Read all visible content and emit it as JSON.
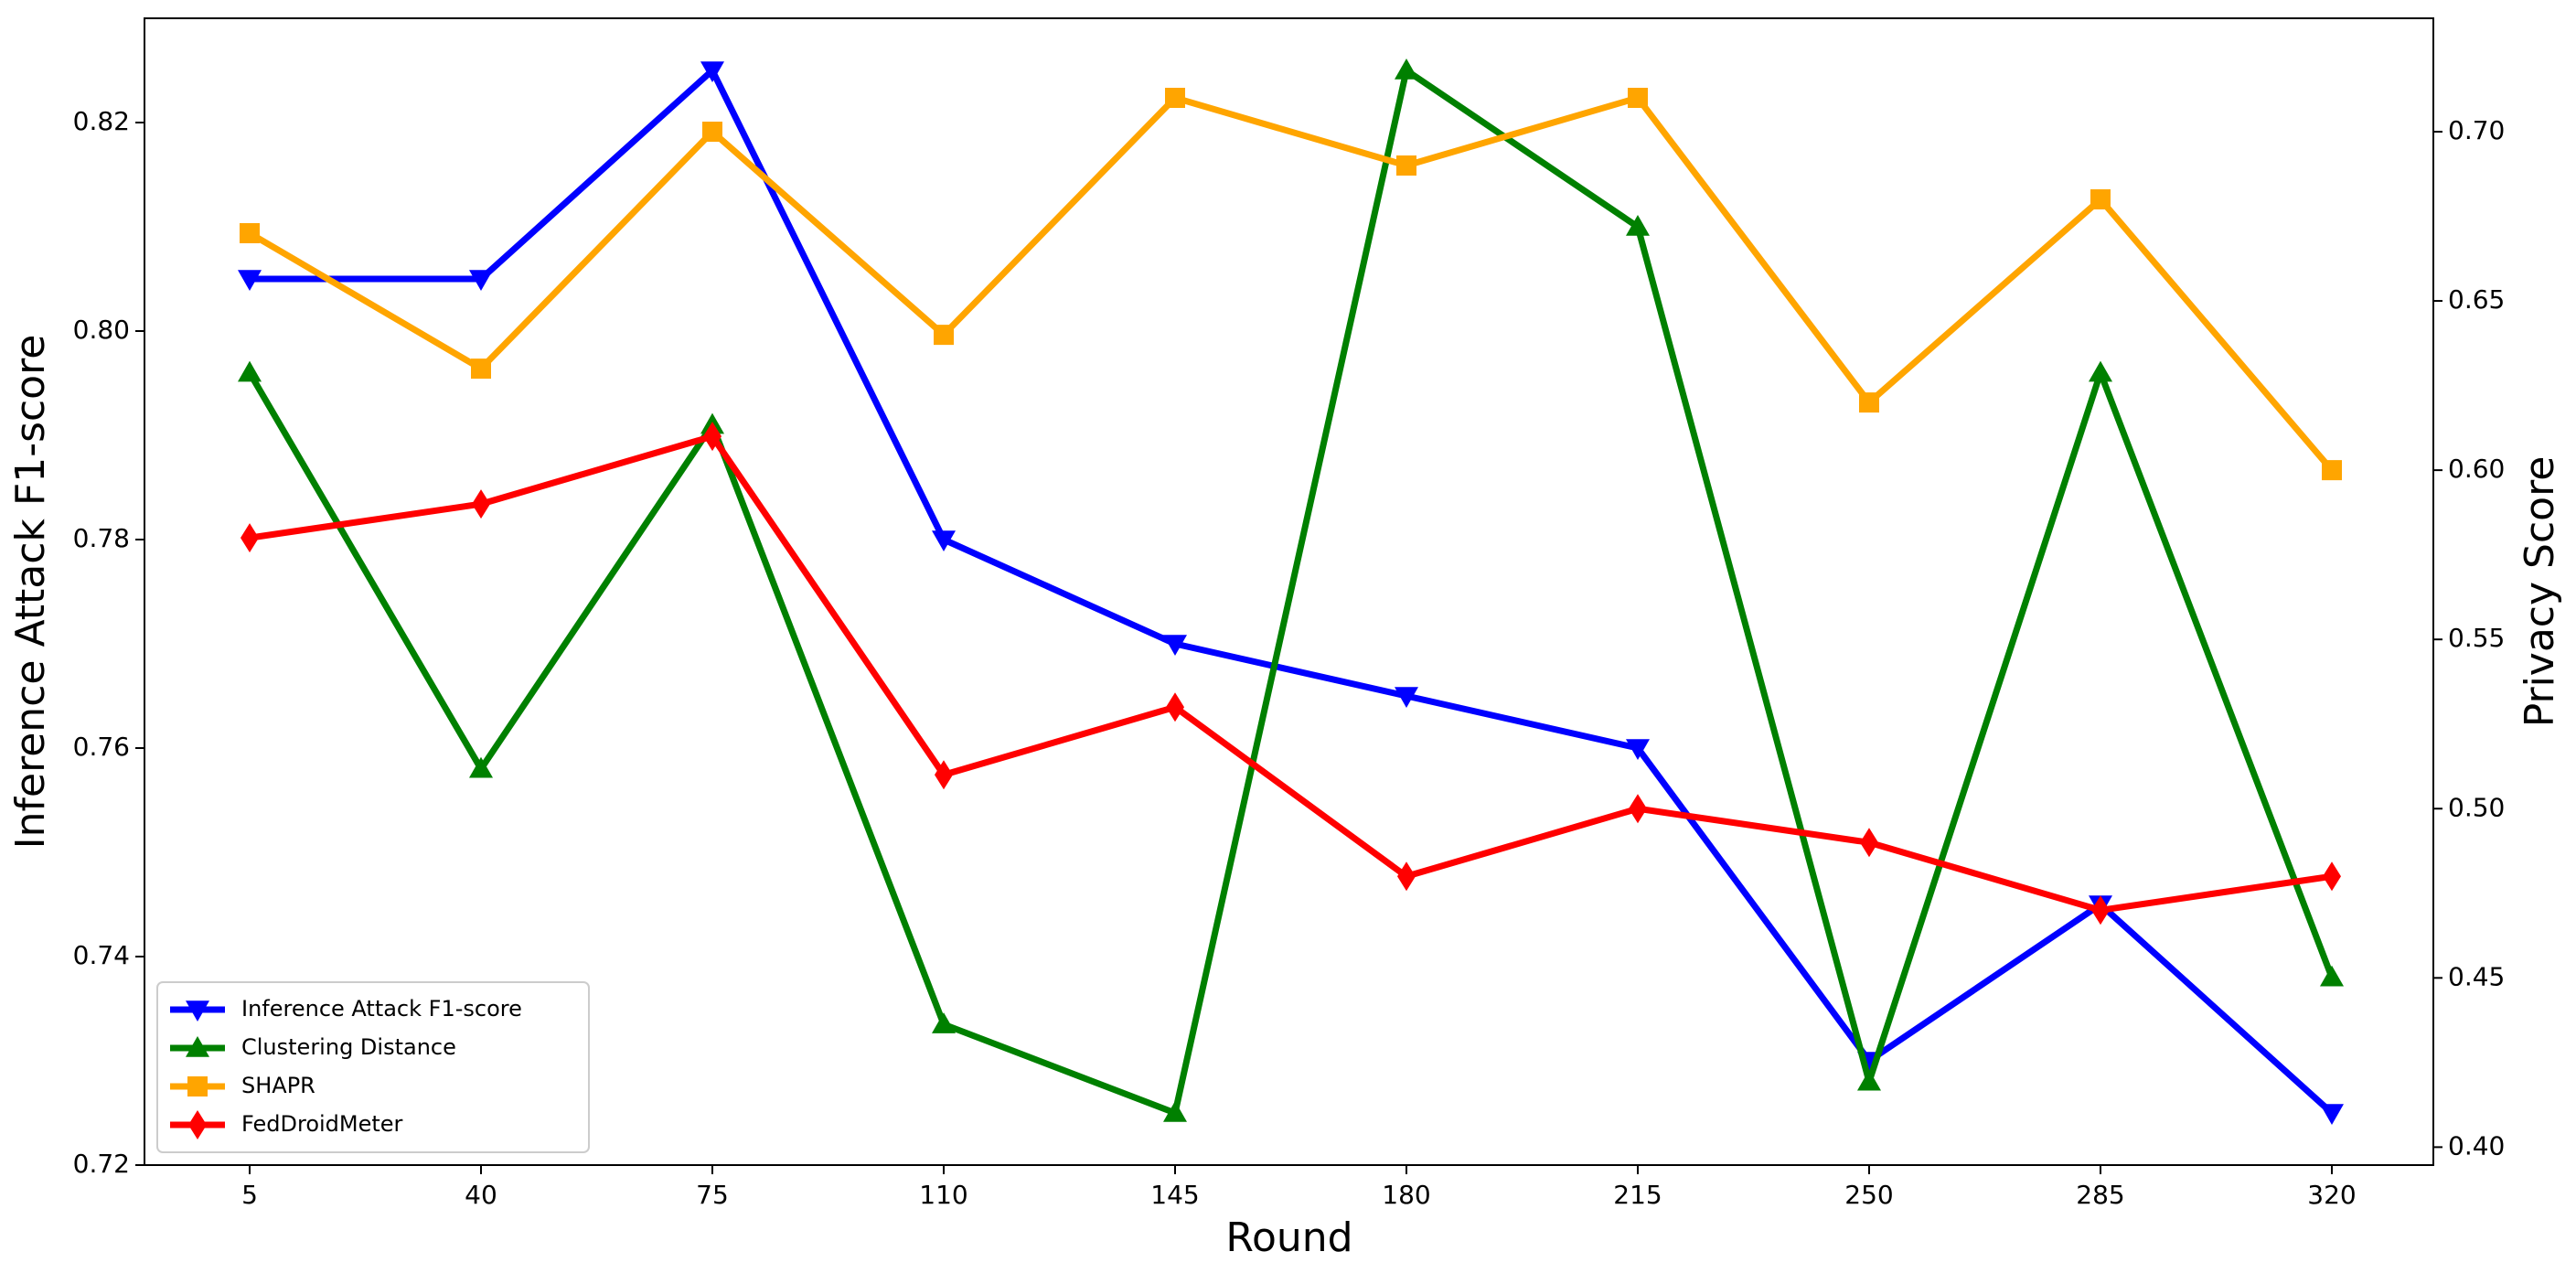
{
  "chart_data": {
    "type": "line",
    "categories": [
      "5",
      "40",
      "75",
      "110",
      "145",
      "180",
      "215",
      "250",
      "285",
      "320"
    ],
    "x_label": "Round",
    "y_label": "Inference Attack F1-score",
    "y2_label": "Privacy Score",
    "ylim": [
      0.72,
      0.83
    ],
    "yticks": [
      0.72,
      0.74,
      0.76,
      0.78,
      {
        "value": 0.8,
        "label": "0.80"
      },
      0.82
    ],
    "y2lim": [
      0.3947,
      0.7335
    ],
    "y2ticks": [
      {
        "value": 0.4,
        "label": "0.40"
      },
      0.45,
      {
        "value": 0.5,
        "label": "0.50"
      },
      0.55,
      {
        "value": 0.6,
        "label": "0.60"
      },
      0.65,
      {
        "value": 0.7,
        "label": "0.70"
      }
    ],
    "legend": "lower left",
    "series": [
      {
        "name": "Inference Attack F1-score",
        "color": "#0000ff",
        "marker": "triangle-down",
        "values": [
          0.805,
          0.805,
          0.825,
          0.78,
          0.77,
          0.765,
          0.76,
          0.73,
          0.745,
          0.725
        ]
      },
      {
        "name": "Clustering Distance",
        "color": "#008000",
        "marker": "triangle-up",
        "values": [
          0.796,
          0.758,
          0.791,
          0.7335,
          0.725,
          0.825,
          0.81,
          0.728,
          0.796,
          0.738
        ]
      },
      {
        "name": "SHAPR",
        "color": "#ffa500",
        "marker": "square",
        "axis": "y2",
        "values": [
          0.67,
          0.63,
          0.7,
          0.64,
          0.71,
          0.69,
          0.71,
          0.62,
          0.68,
          0.6
        ]
      },
      {
        "name": "FedDroidMeter",
        "color": "#ff0000",
        "marker": "diamond",
        "axis": "y2",
        "values": [
          0.58,
          0.59,
          0.61,
          0.51,
          0.53,
          0.48,
          0.5,
          0.49,
          0.47,
          0.48
        ]
      }
    ]
  }
}
